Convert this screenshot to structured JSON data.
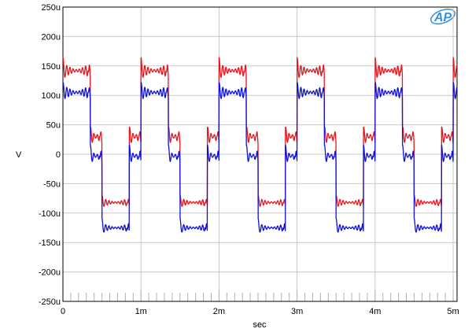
{
  "chart_data": {
    "type": "line",
    "title": "",
    "xlabel": "sec",
    "ylabel": "V",
    "xlim": [
      0,
      0.00505
    ],
    "ylim": [
      -0.00025,
      0.00025
    ],
    "grid": true,
    "legend": "none",
    "logo_text": "AP",
    "x_ticks": [
      {
        "value": 0,
        "label": "0"
      },
      {
        "value": 0.001,
        "label": "1m"
      },
      {
        "value": 0.002,
        "label": "2m"
      },
      {
        "value": 0.003,
        "label": "3m"
      },
      {
        "value": 0.004,
        "label": "4m"
      },
      {
        "value": 0.005,
        "label": "5m"
      }
    ],
    "y_ticks": [
      {
        "value": 0.00025,
        "label": "250u"
      },
      {
        "value": 0.0002,
        "label": "200u"
      },
      {
        "value": 0.00015,
        "label": "150u"
      },
      {
        "value": 0.0001,
        "label": "100u"
      },
      {
        "value": 5e-05,
        "label": "50u"
      },
      {
        "value": 0,
        "label": "0"
      },
      {
        "value": -5e-05,
        "label": "-50u"
      },
      {
        "value": -0.0001,
        "label": "-100u"
      },
      {
        "value": -0.00015,
        "label": "-150u"
      },
      {
        "value": -0.0002,
        "label": "-200u"
      },
      {
        "value": -0.00025,
        "label": "-250u"
      }
    ],
    "series": [
      {
        "color": "#e8141b",
        "period": 0.001,
        "segments": [
          {
            "start": 0.0,
            "end": 0.00035,
            "level": 0.000142,
            "ripple": 1e-05,
            "overshoot": 2.2e-05
          },
          {
            "start": 0.00035,
            "end": 0.0005,
            "level": 3e-05,
            "ripple": 1.2e-05,
            "overshoot": 1.4e-05
          },
          {
            "start": 0.0005,
            "end": 0.00085,
            "level": -8.2e-05,
            "ripple": 6e-06,
            "overshoot": 1.2e-05
          },
          {
            "start": 0.00085,
            "end": 0.001,
            "level": 3e-05,
            "ripple": 1.2e-05,
            "overshoot": 1.4e-05
          }
        ]
      },
      {
        "color": "#1010d8",
        "period": 0.001,
        "segments": [
          {
            "start": 0.0,
            "end": 0.00035,
            "level": 0.000105,
            "ripple": 1e-05,
            "overshoot": 1.6e-05
          },
          {
            "start": 0.00035,
            "end": 0.0005,
            "level": -3e-06,
            "ripple": 1e-05,
            "overshoot": 1.8e-05
          },
          {
            "start": 0.0005,
            "end": 0.00085,
            "level": -0.000125,
            "ripple": 6e-06,
            "overshoot": 1.6e-05
          },
          {
            "start": 0.00085,
            "end": 0.001,
            "level": -3e-06,
            "ripple": 1e-05,
            "overshoot": 1.8e-05
          }
        ]
      }
    ]
  }
}
